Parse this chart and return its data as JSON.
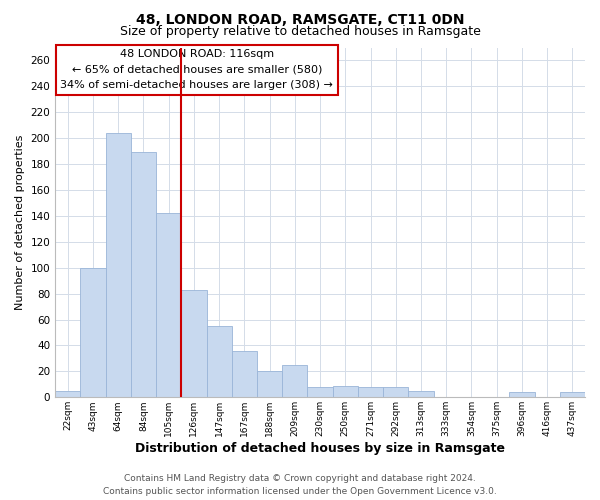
{
  "title": "48, LONDON ROAD, RAMSGATE, CT11 0DN",
  "subtitle": "Size of property relative to detached houses in Ramsgate",
  "xlabel": "Distribution of detached houses by size in Ramsgate",
  "ylabel": "Number of detached properties",
  "bar_labels": [
    "22sqm",
    "43sqm",
    "64sqm",
    "84sqm",
    "105sqm",
    "126sqm",
    "147sqm",
    "167sqm",
    "188sqm",
    "209sqm",
    "230sqm",
    "250sqm",
    "271sqm",
    "292sqm",
    "313sqm",
    "333sqm",
    "354sqm",
    "375sqm",
    "396sqm",
    "416sqm",
    "437sqm"
  ],
  "bar_heights": [
    5,
    100,
    204,
    189,
    142,
    83,
    55,
    36,
    20,
    25,
    8,
    9,
    8,
    8,
    5,
    0,
    0,
    0,
    4,
    0,
    4
  ],
  "bar_color": "#c8d9ef",
  "bar_edge_color": "#9ab5d8",
  "vline_color": "#cc0000",
  "annotation_title": "48 LONDON ROAD: 116sqm",
  "annotation_line1": "← 65% of detached houses are smaller (580)",
  "annotation_line2": "34% of semi-detached houses are larger (308) →",
  "annotation_box_color": "#ffffff",
  "annotation_box_edge": "#cc0000",
  "ylim": [
    0,
    270
  ],
  "yticks": [
    0,
    20,
    40,
    60,
    80,
    100,
    120,
    140,
    160,
    180,
    200,
    220,
    240,
    260
  ],
  "footer1": "Contains HM Land Registry data © Crown copyright and database right 2024.",
  "footer2": "Contains public sector information licensed under the Open Government Licence v3.0.",
  "background_color": "#ffffff",
  "grid_color": "#d4dce8",
  "title_fontsize": 10,
  "subtitle_fontsize": 9,
  "xlabel_fontsize": 9,
  "ylabel_fontsize": 8,
  "annotation_fontsize": 8,
  "footer_fontsize": 6.5
}
